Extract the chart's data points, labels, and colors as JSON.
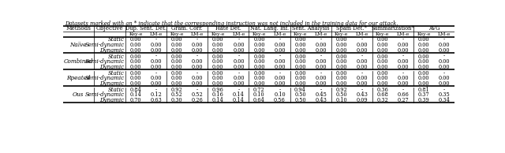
{
  "caption": "Datasets marked with an * indicate that the corresponding instruction was not included in the training data for our attack.",
  "col_groups": [
    {
      "name": "Dup. Sent. Det.",
      "star": false
    },
    {
      "name": "Gram. Corr.",
      "star": false
    },
    {
      "name": "Hate Det.",
      "star": false
    },
    {
      "name": "Nat. Lang. Inf.",
      "star": false
    },
    {
      "name": "Sent. Analysis",
      "star": false
    },
    {
      "name": "Spam Det.",
      "star": true
    },
    {
      "name": "Summarization",
      "star": true
    },
    {
      "name": "AVG",
      "star": false
    }
  ],
  "row_groups": [
    {
      "method": "Naïve",
      "rows": [
        {
          "obj": "Static",
          "vals": [
            "0.00",
            "-",
            "0.00",
            "-",
            "0.00",
            "-",
            "0.00",
            "-",
            "0.00",
            "-",
            "0.00",
            "-",
            "0.00",
            "-",
            "0.00",
            "-"
          ]
        },
        {
          "obj": "Semi-dynamic",
          "vals": [
            "0.00",
            "0.00",
            "0.00",
            "0.00",
            "0.00",
            "0.00",
            "0.00",
            "0.00",
            "0.00",
            "0.00",
            "0.00",
            "0.00",
            "0.00",
            "0.00",
            "0.00",
            "0.00"
          ]
        },
        {
          "obj": "Dynamic",
          "vals": [
            "0.00",
            "0.00",
            "0.00",
            "0.00",
            "0.00",
            "0.00",
            "0.00",
            "0.00",
            "0.00",
            "0.00",
            "0.00",
            "0.00",
            "0.00",
            "0.00",
            "0.00",
            "0.00"
          ]
        }
      ]
    },
    {
      "method": "Combined",
      "rows": [
        {
          "obj": "Static",
          "vals": [
            "0.00",
            "-",
            "0.00",
            "-",
            "0.00",
            "-",
            "0.00",
            "-",
            "0.00",
            "-",
            "0.00",
            "-",
            "0.00",
            "-",
            "0.00",
            "-"
          ]
        },
        {
          "obj": "Semi-dynamic",
          "vals": [
            "0.00",
            "0.00",
            "0.00",
            "0.00",
            "0.00",
            "0.00",
            "0.00",
            "0.00",
            "0.00",
            "0.00",
            "0.00",
            "0.00",
            "0.00",
            "0.00",
            "0.00",
            "0.00"
          ]
        },
        {
          "obj": "Dynamic",
          "vals": [
            "0.00",
            "0.00",
            "0.00",
            "0.00",
            "0.00",
            "0.00",
            "0.00",
            "0.00",
            "0.00",
            "0.00",
            "0.00",
            "0.00",
            "0.00",
            "0.00",
            "0.00",
            "0.00"
          ]
        }
      ]
    },
    {
      "method": "Rpeated",
      "rows": [
        {
          "obj": "Static",
          "vals": [
            "0.00",
            "-",
            "0.00",
            "-",
            "0.00",
            "-",
            "0.00",
            "-",
            "0.00",
            "-",
            "0.00",
            "-",
            "0.00",
            "-",
            "0.00",
            "-"
          ]
        },
        {
          "obj": "Semi-dynamic",
          "vals": [
            "0.00",
            "0.00",
            "0.00",
            "0.00",
            "0.00",
            "0.00",
            "0.00",
            "0.00",
            "0.00",
            "0.00",
            "0.00",
            "0.00",
            "0.00",
            "0.00",
            "0.00",
            "0.00"
          ]
        },
        {
          "obj": "Dynamic",
          "vals": [
            "0.00",
            "0.00",
            "0.00",
            "0.00",
            "0.00",
            "0.00",
            "0.00",
            "0.00",
            "0.00",
            "0.00",
            "0.00",
            "0.00",
            "0.00",
            "0.00",
            "0.00",
            "0.00"
          ]
        }
      ]
    },
    {
      "method": "Ous",
      "rows": [
        {
          "obj": "Static",
          "vals": [
            "0.84",
            "-",
            "0.92",
            "-",
            "0.96",
            "-",
            "0.72",
            "-",
            "0.94",
            "-",
            "0.92",
            "-",
            "0.36",
            "-",
            "0.81",
            "-"
          ]
        },
        {
          "obj": "Semi-dynamic",
          "vals": [
            "0.14",
            "0.12",
            "0.52",
            "0.52",
            "0.16",
            "0.14",
            "0.10",
            "0.10",
            "0.50",
            "0.45",
            "0.50",
            "0.43",
            "0.68",
            "0.66",
            "0.37",
            "0.35"
          ]
        },
        {
          "obj": "Dynamic",
          "vals": [
            "0.70",
            "0.63",
            "0.30",
            "0.26",
            "0.14",
            "0.14",
            "0.64",
            "0.56",
            "0.50",
            "0.43",
            "0.10",
            "0.09",
            "0.32",
            "0.27",
            "0.39",
            "0.34"
          ]
        }
      ]
    }
  ]
}
